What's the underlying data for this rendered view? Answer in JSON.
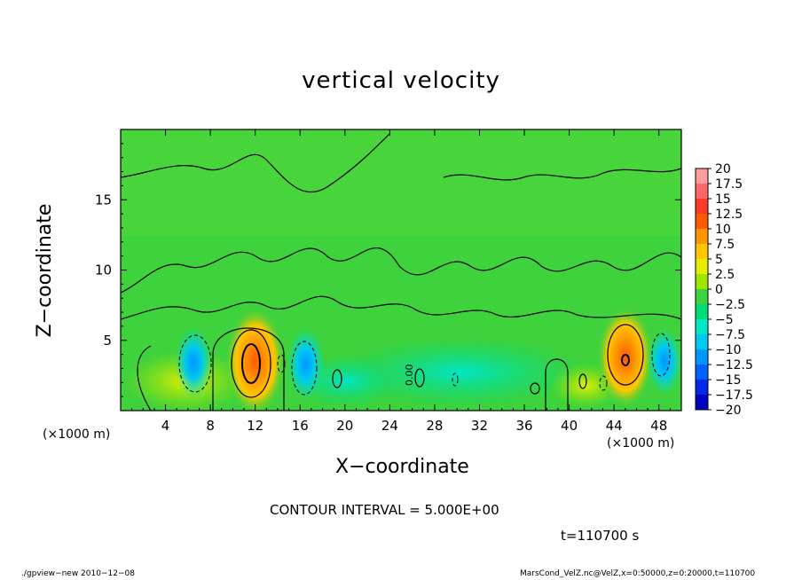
{
  "chart_data": {
    "type": "heatmap",
    "title": "vertical velocity",
    "xlabel": "X−coordinate",
    "ylabel": "Z−coordinate",
    "x_unit_left": "(×1000 m)",
    "x_unit_right": "(×1000 m)",
    "xlim": [
      0,
      50
    ],
    "ylim": [
      0,
      20
    ],
    "x_ticks": [
      4,
      8,
      12,
      16,
      20,
      24,
      28,
      32,
      36,
      40,
      44,
      48
    ],
    "y_ticks": [
      5,
      10,
      15
    ],
    "colorbar_labels": [
      "20",
      "17.5",
      "15",
      "12.5",
      "10",
      "7.5",
      "5",
      "2.5",
      "0",
      "−2.5",
      "−5",
      "−7.5",
      "−10",
      "−12.5",
      "−15",
      "−17.5",
      "−20"
    ],
    "colorbar_colors": [
      "#ff9c9c",
      "#ff6666",
      "#ff3a28",
      "#ff5a00",
      "#ff9600",
      "#ffc800",
      "#e6ee00",
      "#9ee600",
      "#3ed23c",
      "#00dc78",
      "#00e6c8",
      "#00c8f0",
      "#0096ff",
      "#0060ff",
      "#0028e6",
      "#0000c0",
      "#5a00c0"
    ],
    "contour_interval_label": "CONTOUR INTERVAL = 5.000E+00",
    "contour_label_0": "0.00",
    "time_label": "t=110700 s",
    "features": [
      {
        "x": 12,
        "z": 3.5,
        "value": 12.5
      },
      {
        "x": 45,
        "z": 3.8,
        "value": 10
      },
      {
        "x": 6.5,
        "z": 3.4,
        "value": -7.5
      },
      {
        "x": 16.5,
        "z": 3.3,
        "value": -7.5
      },
      {
        "x": 48.5,
        "z": 3.5,
        "value": -5
      }
    ]
  },
  "footer": {
    "left": "./gpview−new   2010−12−08",
    "right": "MarsCond_VelZ.nc@VelZ,x=0:50000,z=0:20000,t=110700"
  }
}
